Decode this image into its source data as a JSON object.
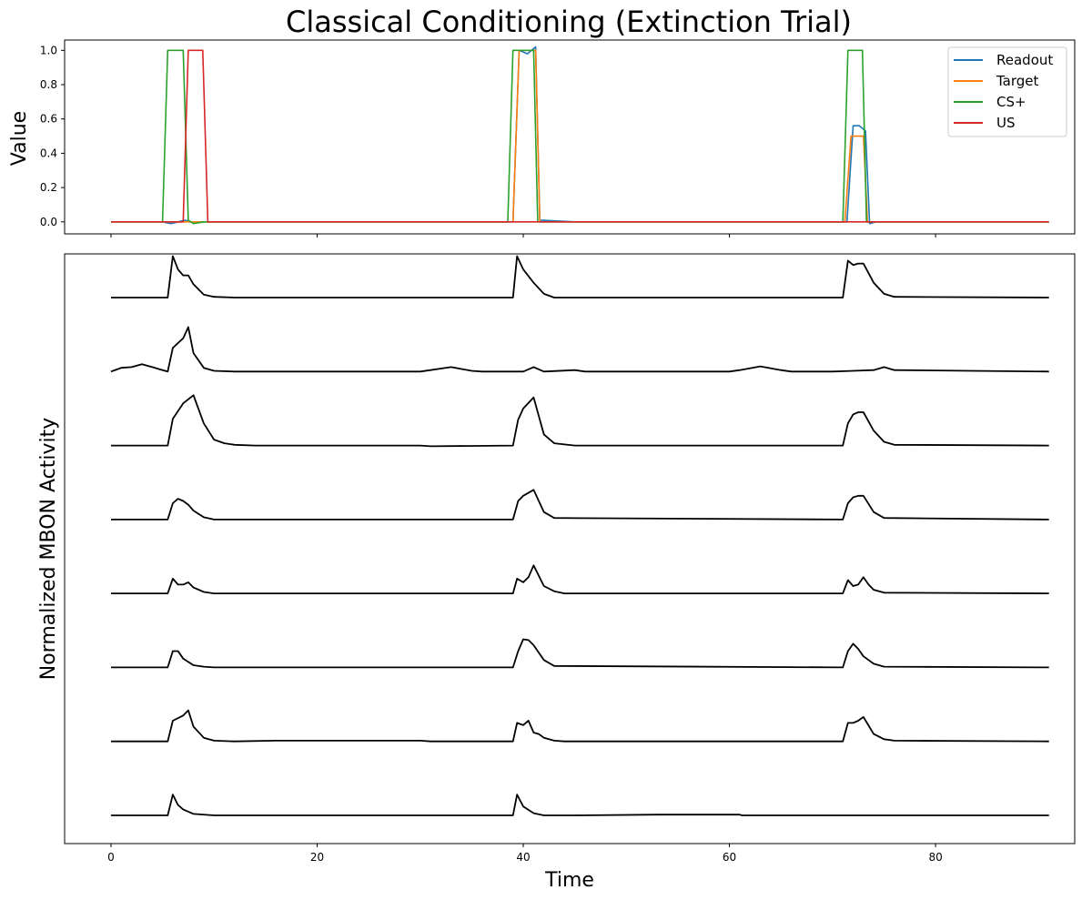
{
  "figure": {
    "title": "Classical Conditioning (Extinction Trial)",
    "top_ylabel": "Value",
    "bottom_ylabel": "Normalized MBON Activity",
    "xlabel": "Time"
  },
  "colors": {
    "Readout": "#1f77b4",
    "Target": "#ff7f0e",
    "CS+": "#2ca02c",
    "US": "#d62728",
    "mbon": "#000000"
  },
  "chart_data": [
    {
      "type": "line",
      "title": "Classical Conditioning (Extinction Trial)",
      "xlabel": "",
      "ylabel": "Value",
      "xlim": [
        -4.5,
        93.5
      ],
      "ylim": [
        -0.07,
        1.06
      ],
      "xticks": [
        0,
        20,
        40,
        60,
        80
      ],
      "yticks": [
        0.0,
        0.2,
        0.4,
        0.6,
        0.8,
        1.0
      ],
      "ytick_labels": [
        "0.0",
        "0.2",
        "0.4",
        "0.6",
        "0.8",
        "1.0"
      ],
      "legend": "top-right",
      "grid": false,
      "series": [
        {
          "name": "Readout",
          "x": [
            0,
            5,
            5.8,
            6.5,
            7.2,
            7.6,
            8.2,
            10,
            39,
            39.6,
            40.4,
            41.0,
            41.2,
            41.6,
            45,
            70,
            71.4,
            72.0,
            72.6,
            73.2,
            73.6,
            74.2,
            91
          ],
          "y": [
            0,
            0,
            -0.01,
            0,
            0.01,
            0,
            0,
            0,
            0,
            1.0,
            0.98,
            1.01,
            1.02,
            0.01,
            0,
            0,
            0,
            0.56,
            0.56,
            0.53,
            -0.01,
            0,
            0
          ]
        },
        {
          "name": "Target",
          "x": [
            0,
            39,
            39.6,
            40.4,
            41.2,
            41.6,
            71.2,
            71.8,
            73.0,
            73.4,
            91
          ],
          "y": [
            0,
            0,
            1.0,
            1.0,
            1.0,
            0,
            0,
            0.5,
            0.5,
            0,
            0
          ]
        },
        {
          "name": "CS+",
          "x": [
            0,
            5.0,
            5.5,
            7.0,
            7.5,
            8.0,
            9.0,
            38.5,
            39.0,
            40.5,
            41.0,
            41.4,
            71.0,
            71.5,
            72.9,
            73.3,
            91
          ],
          "y": [
            0,
            0,
            1.0,
            1.0,
            0.01,
            -0.01,
            0,
            0,
            1.0,
            1.0,
            1.0,
            0,
            0,
            1.0,
            1.0,
            0,
            0
          ]
        },
        {
          "name": "US",
          "x": [
            0,
            7.0,
            7.5,
            8.9,
            9.4,
            91
          ],
          "y": [
            0,
            0,
            1.0,
            1.0,
            0,
            0
          ]
        }
      ]
    },
    {
      "type": "line",
      "title": "",
      "xlabel": "Time",
      "ylabel": "Normalized MBON Activity",
      "xlim": [
        -4.5,
        93.5
      ],
      "xticks": [
        0,
        20,
        40,
        60,
        80
      ],
      "xtick_labels": [
        "0",
        "20",
        "40",
        "60",
        "80"
      ],
      "yticks": [],
      "grid": false,
      "offset_spacing": 1.0,
      "series": [
        {
          "x": [
            0,
            5.5,
            6,
            6.5,
            7,
            7.5,
            8,
            9,
            10,
            12,
            39,
            39.4,
            40,
            41,
            42,
            43,
            71,
            71.5,
            72,
            72.5,
            73,
            74,
            75,
            76,
            91
          ],
          "y": [
            0,
            0,
            0.56,
            0.38,
            0.3,
            0.3,
            0.18,
            0.04,
            0.01,
            0,
            0,
            0.56,
            0.38,
            0.2,
            0.05,
            0,
            0,
            0.5,
            0.44,
            0.46,
            0.46,
            0.2,
            0.05,
            0.01,
            0
          ]
        },
        {
          "x": [
            0,
            1,
            2,
            3,
            4,
            5,
            5.5,
            6,
            7,
            7.5,
            8,
            9,
            10,
            12,
            30,
            31,
            33,
            35,
            36,
            40,
            41,
            42,
            45,
            46,
            60,
            61,
            63,
            65,
            66,
            70,
            72,
            74,
            75,
            76,
            91
          ],
          "y": [
            0,
            0.05,
            0.06,
            0.1,
            0.06,
            0.02,
            0,
            0.32,
            0.45,
            0.6,
            0.25,
            0.05,
            0.01,
            0,
            0,
            0.02,
            0.06,
            0.01,
            0,
            0,
            0.06,
            0,
            0.02,
            0,
            0,
            0.02,
            0.07,
            0.02,
            0,
            0,
            0.01,
            0.02,
            0.06,
            0.02,
            0
          ]
        },
        {
          "x": [
            0,
            5.5,
            6,
            7,
            8,
            9,
            10,
            11,
            12,
            14,
            30,
            31,
            39,
            39.5,
            40,
            41,
            42,
            43,
            45,
            71,
            71.5,
            72,
            72.5,
            73,
            74,
            75,
            76,
            91
          ],
          "y": [
            0,
            0,
            0.36,
            0.57,
            0.68,
            0.3,
            0.08,
            0.03,
            0.01,
            0,
            0,
            -0.01,
            0,
            0.35,
            0.5,
            0.65,
            0.15,
            0.03,
            0,
            0,
            0.3,
            0.42,
            0.45,
            0.45,
            0.2,
            0.05,
            0.01,
            0
          ]
        },
        {
          "x": [
            0,
            5.5,
            6,
            6.5,
            7,
            7.5,
            8,
            9,
            10,
            39,
            39.5,
            40,
            41,
            42,
            43,
            71,
            71.5,
            72,
            72.5,
            73,
            74,
            75,
            91
          ],
          "y": [
            0,
            0,
            0.22,
            0.28,
            0.25,
            0.2,
            0.12,
            0.03,
            0,
            0,
            0.25,
            0.32,
            0.4,
            0.1,
            0.02,
            0,
            0.22,
            0.3,
            0.32,
            0.32,
            0.1,
            0.02,
            0
          ]
        },
        {
          "x": [
            0,
            5.5,
            6,
            6.5,
            7,
            7.5,
            8,
            9,
            10,
            39,
            39.4,
            40,
            40.5,
            41,
            42,
            43,
            44,
            71,
            71.5,
            72,
            72.5,
            73,
            73.5,
            74,
            75,
            91
          ],
          "y": [
            0,
            0,
            0.2,
            0.12,
            0.12,
            0.15,
            0.08,
            0.02,
            0,
            0,
            0.2,
            0.15,
            0.22,
            0.38,
            0.1,
            0.03,
            0,
            0,
            0.18,
            0.1,
            0.12,
            0.22,
            0.12,
            0.05,
            0.01,
            0
          ]
        },
        {
          "x": [
            0,
            5.5,
            6,
            6.5,
            7,
            8,
            9,
            10,
            39,
            39.5,
            40,
            40.5,
            41,
            42,
            43,
            71,
            71.5,
            72,
            72.5,
            73,
            74,
            75,
            91
          ],
          "y": [
            0,
            0,
            0.22,
            0.22,
            0.12,
            0.03,
            0.01,
            0,
            0,
            0.22,
            0.38,
            0.37,
            0.3,
            0.1,
            0.02,
            0,
            0.22,
            0.32,
            0.25,
            0.15,
            0.05,
            0.01,
            0
          ]
        },
        {
          "x": [
            0,
            5.5,
            6,
            7,
            7.5,
            8,
            9,
            10,
            12,
            16,
            30,
            31,
            39,
            39.4,
            40,
            40.5,
            41,
            41.5,
            42,
            43,
            44,
            71,
            71.5,
            72,
            72.5,
            73,
            74,
            75,
            76,
            91
          ],
          "y": [
            0,
            0,
            0.28,
            0.35,
            0.42,
            0.2,
            0.05,
            0.01,
            0,
            0.01,
            0.01,
            0,
            0,
            0.25,
            0.22,
            0.28,
            0.12,
            0.1,
            0.05,
            0.01,
            0,
            0,
            0.25,
            0.25,
            0.28,
            0.33,
            0.1,
            0.03,
            0.01,
            0
          ]
        },
        {
          "x": [
            0,
            5.5,
            6,
            6.5,
            7,
            8,
            10,
            39,
            39.4,
            40,
            41,
            42,
            45,
            53,
            61,
            61.2,
            91
          ],
          "y": [
            0,
            0,
            0.28,
            0.14,
            0.08,
            0.02,
            0,
            0,
            0.28,
            0.12,
            0.03,
            0,
            0,
            0.01,
            0.01,
            0,
            0
          ]
        }
      ]
    }
  ]
}
